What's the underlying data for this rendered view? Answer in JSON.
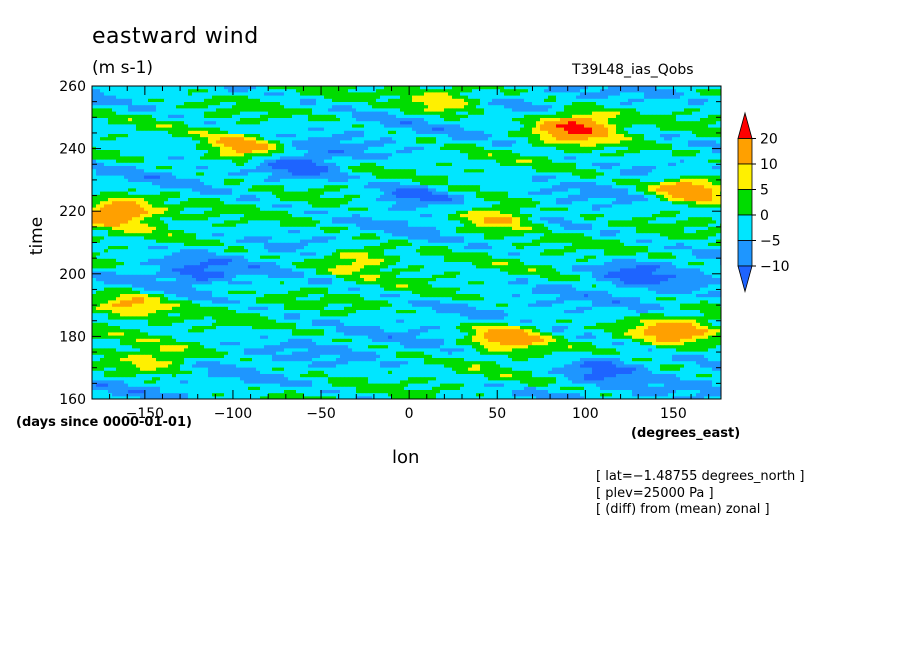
{
  "chart_data": {
    "type": "heatmap",
    "title": "eastward wind",
    "units": "(m s-1)",
    "experiment": "T39L48_ias_Qobs",
    "xlabel": "lon",
    "x_units": "(degrees_east)",
    "ylabel": "time",
    "y_units": "(days since 0000-01-01)",
    "xlim": [
      -180,
      177
    ],
    "ylim": [
      160,
      260
    ],
    "x_ticks": [
      -150,
      -100,
      -50,
      0,
      50,
      100,
      150
    ],
    "y_ticks": [
      160,
      180,
      200,
      220,
      240,
      260
    ],
    "colorbar": {
      "levels": [
        -10,
        -5,
        0,
        5,
        10,
        20
      ],
      "labels": [
        "20",
        "10",
        "5",
        "0",
        "−5",
        "−10"
      ],
      "colors": [
        "#1e64ff",
        "#1e96ff",
        "#00e6ff",
        "#00dc00",
        "#fff000",
        "#ffa000",
        "#ff0000"
      ]
    },
    "notes": [
      "[ lat=−1.48755 degrees_north ]",
      "[ plev=25000 Pa ]",
      "[ (diff) from (mean) zonal ]"
    ],
    "features": [
      {
        "lon": -165,
        "time": 220,
        "value": 18
      },
      {
        "lon": -160,
        "time": 190,
        "value": 12
      },
      {
        "lon": -145,
        "time": 172,
        "value": 9
      },
      {
        "lon": -95,
        "time": 240,
        "value": 15
      },
      {
        "lon": -30,
        "time": 205,
        "value": 10
      },
      {
        "lon": 50,
        "time": 218,
        "value": 14
      },
      {
        "lon": 95,
        "time": 247,
        "value": 22
      },
      {
        "lon": 55,
        "time": 180,
        "value": 16
      },
      {
        "lon": 160,
        "time": 227,
        "value": 18
      },
      {
        "lon": 150,
        "time": 182,
        "value": 13
      },
      {
        "lon": 20,
        "time": 255,
        "value": 10
      },
      {
        "lon": -60,
        "time": 235,
        "value": -12
      },
      {
        "lon": 0,
        "time": 225,
        "value": -11
      },
      {
        "lon": 130,
        "time": 200,
        "value": -10
      },
      {
        "lon": -120,
        "time": 200,
        "value": -9
      },
      {
        "lon": 110,
        "time": 170,
        "value": -12
      }
    ]
  }
}
